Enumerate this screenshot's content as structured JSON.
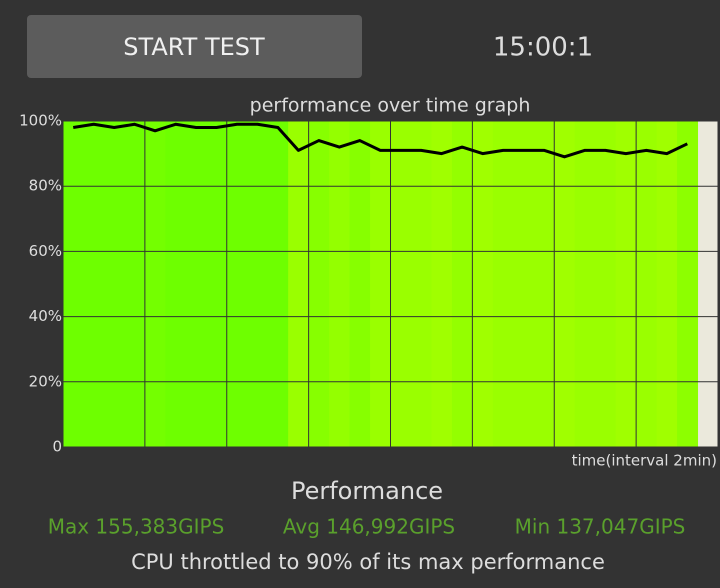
{
  "button": "START TEST",
  "timer": "15:00:1",
  "chart_data": {
    "type": "line",
    "title": "performance over time graph",
    "x_label": "time(interval 2min)",
    "x": [
      0,
      0.5,
      1,
      1.5,
      2,
      2.5,
      3,
      3.5,
      4,
      4.5,
      5,
      5.5,
      6,
      6.5,
      7,
      7.5,
      8,
      8.5,
      9,
      9.5,
      10,
      10.5,
      11,
      11.5,
      12,
      12.5,
      13,
      13.5,
      14,
      14.5,
      15
    ],
    "series": [
      {
        "color": "#000000",
        "values": [
          98,
          99,
          98,
          99,
          97,
          99,
          98,
          98,
          99,
          99,
          98,
          91,
          94,
          92,
          94,
          91,
          91,
          91,
          90,
          92,
          90,
          91,
          91,
          91,
          89,
          91,
          91,
          90,
          91,
          90,
          93
        ]
      }
    ],
    "xlim": [
      0,
      16
    ],
    "xticks": [
      0,
      2,
      4,
      6,
      8,
      10,
      12,
      14,
      16
    ],
    "ylim": [
      0,
      100
    ],
    "yticks": [
      0,
      {
        "value": 20,
        "label": "20%"
      },
      {
        "value": 40,
        "label": "40%"
      },
      {
        "value": 60,
        "label": "60%"
      },
      {
        "value": 80,
        "label": "80%"
      },
      {
        "value": 100,
        "label": "100%"
      }
    ],
    "grid": true
  },
  "stats": {
    "heading": "Performance",
    "max": "Max 155,383GIPS",
    "avg": "Avg 146,992GIPS",
    "min": "Min 137,047GIPS",
    "summary": "CPU throttled to 90% of its max performance"
  }
}
